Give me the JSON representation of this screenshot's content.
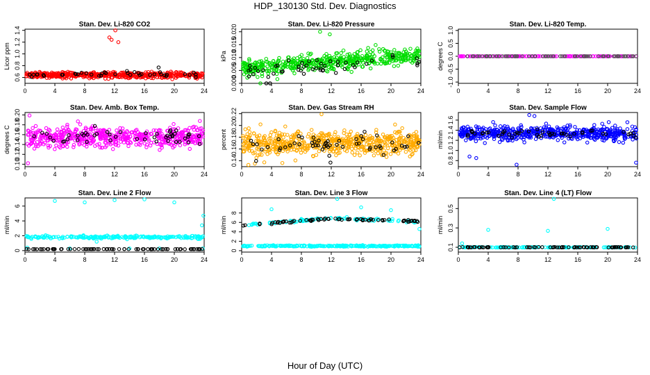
{
  "figure": {
    "title": "HDP_130130  Std. Dev. Diagnostics",
    "xlabel": "Hour of Day (UTC)"
  },
  "chart_data": [
    {
      "type": "scatter",
      "title": "Stan. Dev. Li-820 CO2",
      "ylabel": "Licor ppm",
      "xlim": [
        0,
        24
      ],
      "ylim": [
        0.5,
        1.42
      ],
      "xticks": [
        0,
        4,
        8,
        12,
        16,
        20,
        24
      ],
      "yticks": [
        0.6,
        0.8,
        1.0,
        1.2,
        1.4
      ],
      "ytick_labels": [
        "0.6",
        "0.8",
        "1.0",
        "1.2",
        "1.4"
      ],
      "color": "#ff0000",
      "series": [
        {
          "name": "main",
          "color": "#ff0000",
          "pattern": "band",
          "n": 520,
          "center": 0.64,
          "spread": 0.05,
          "outliers": [
            [
              11.3,
              1.28
            ],
            [
              11.6,
              1.24
            ],
            [
              12.1,
              1.4
            ],
            [
              12.5,
              1.2
            ]
          ]
        },
        {
          "name": "reference",
          "color": "#000000",
          "pattern": "band",
          "n": 40,
          "center": 0.65,
          "spread": 0.04,
          "outliers": [
            [
              17.9,
              0.77
            ]
          ]
        }
      ]
    },
    {
      "type": "scatter",
      "title": "Stan. Dev. Li-820 Pressure",
      "ylabel": "kPa",
      "xlim": [
        0,
        24
      ],
      "ylim": [
        0,
        0.021
      ],
      "xticks": [
        0,
        4,
        8,
        12,
        16,
        20,
        24
      ],
      "yticks": [
        0.0,
        0.005,
        0.01,
        0.015,
        0.02
      ],
      "ytick_labels": [
        "0.000",
        "0.005",
        "0.010",
        "0.015",
        "0.020"
      ],
      "color": "#00dd00",
      "series": [
        {
          "name": "main",
          "color": "#00dd00",
          "pattern": "trend",
          "n": 520,
          "start": 0.006,
          "end": 0.011,
          "spread": 0.0035,
          "outliers": [
            [
              10.5,
              0.02
            ],
            [
              11.8,
              0.019
            ],
            [
              2.5,
              0.0
            ]
          ]
        },
        {
          "name": "reference",
          "color": "#000000",
          "pattern": "trend",
          "n": 50,
          "start": 0.005,
          "end": 0.009,
          "spread": 0.003,
          "outliers": [
            [
              3.3,
              0.0
            ],
            [
              3.8,
              0.0
            ]
          ]
        }
      ]
    },
    {
      "type": "scatter",
      "title": "Stan. Dev. Li-820 Temp.",
      "ylabel": "degrees C",
      "xlim": [
        0,
        24
      ],
      "ylim": [
        -1.05,
        1.05
      ],
      "xticks": [
        0,
        4,
        8,
        12,
        16,
        20,
        24
      ],
      "yticks": [
        -1.0,
        -0.5,
        0.0,
        0.5,
        1.0
      ],
      "ytick_labels": [
        "-1.0",
        "-0.5",
        "0.0",
        "0.5",
        "1.0"
      ],
      "color": "#ff00ff",
      "series": [
        {
          "name": "main",
          "color": "#ff00ff",
          "pattern": "line",
          "n": 160,
          "center": 0.0,
          "spread": 0.0,
          "outliers": []
        },
        {
          "name": "reference",
          "color": "#555555",
          "pattern": "line",
          "n": 80,
          "center": 0.0,
          "spread": 0.0,
          "outliers": []
        }
      ]
    },
    {
      "type": "scatter",
      "title": "Stan. Dev. Amb. Box Temp.",
      "ylabel": "degrees C",
      "xlim": [
        0,
        24
      ],
      "ylim": [
        0.095,
        0.205
      ],
      "xticks": [
        0,
        4,
        8,
        12,
        16,
        20,
        24
      ],
      "yticks": [
        0.1,
        0.12,
        0.14,
        0.16,
        0.18,
        0.2
      ],
      "ytick_labels": [
        "0.10",
        "0.12",
        "0.14",
        "0.16",
        "0.18",
        "0.20"
      ],
      "color": "#ff00ff",
      "series": [
        {
          "name": "main",
          "color": "#ff00ff",
          "pattern": "band",
          "n": 560,
          "center": 0.155,
          "spread": 0.02,
          "outliers": [
            [
              0.4,
              0.102
            ],
            [
              0.6,
              0.199
            ]
          ]
        },
        {
          "name": "reference",
          "color": "#000000",
          "pattern": "band",
          "n": 50,
          "center": 0.158,
          "spread": 0.016,
          "outliers": []
        }
      ]
    },
    {
      "type": "scatter",
      "title": "Stan. Dev. Gas Stream RH",
      "ylabel": "percent",
      "xlim": [
        0,
        24
      ],
      "ylim": [
        0.13,
        0.222
      ],
      "xticks": [
        0,
        4,
        8,
        12,
        16,
        20,
        24
      ],
      "yticks": [
        0.14,
        0.16,
        0.18,
        0.2,
        0.22
      ],
      "ytick_labels": [
        "0.14",
        "0.16",
        "0.18",
        "0.20",
        "0.22"
      ],
      "color": "#ffaa00",
      "series": [
        {
          "name": "main",
          "color": "#ffaa00",
          "pattern": "band",
          "n": 620,
          "center": 0.17,
          "spread": 0.021,
          "outliers": [
            [
              10.7,
              0.219
            ],
            [
              0.9,
              0.133
            ]
          ]
        },
        {
          "name": "reference",
          "color": "#000000",
          "pattern": "band",
          "n": 55,
          "center": 0.168,
          "spread": 0.015,
          "outliers": [
            [
              11.9,
              0.137
            ]
          ]
        }
      ]
    },
    {
      "type": "scatter",
      "title": "Stan. Dev. Sample Flow",
      "ylabel": "ml/min",
      "xlim": [
        0,
        24
      ],
      "ylim": [
        0.68,
        1.75
      ],
      "xticks": [
        0,
        4,
        8,
        12,
        16,
        20,
        24
      ],
      "yticks": [
        0.8,
        1.0,
        1.2,
        1.4,
        1.6
      ],
      "ytick_labels": [
        "0.8",
        "1.0",
        "1.2",
        "1.4",
        "1.6"
      ],
      "color": "#0000ff",
      "series": [
        {
          "name": "main",
          "color": "#0000ff",
          "pattern": "band",
          "n": 560,
          "center": 1.34,
          "spread": 0.14,
          "outliers": [
            [
              9.5,
              1.7
            ],
            [
              10.2,
              1.68
            ],
            [
              7.8,
              0.72
            ],
            [
              23.8,
              0.76
            ],
            [
              1.5,
              0.88
            ],
            [
              2.4,
              0.85
            ]
          ]
        },
        {
          "name": "reference",
          "color": "#000000",
          "pattern": "band",
          "n": 50,
          "center": 1.34,
          "spread": 0.08,
          "outliers": []
        }
      ]
    },
    {
      "type": "scatter",
      "title": "Stan. Dev. Line 2 Flow",
      "ylabel": "ml/min",
      "xlim": [
        0,
        24
      ],
      "ylim": [
        -0.2,
        7.1
      ],
      "xticks": [
        0,
        4,
        8,
        12,
        16,
        20,
        24
      ],
      "yticks": [
        0,
        2,
        4,
        6
      ],
      "ytick_labels": [
        "0",
        "2",
        "4",
        "6"
      ],
      "color": "#00ffff",
      "series": [
        {
          "name": "main",
          "color": "#00ffff",
          "pattern": "band",
          "n": 220,
          "center": 1.8,
          "spread": 0.2,
          "outliers": [
            [
              4.0,
              6.7
            ],
            [
              8.0,
              6.5
            ],
            [
              12.0,
              6.8
            ],
            [
              16.0,
              6.9
            ],
            [
              20.0,
              6.5
            ],
            [
              23.7,
              3.4
            ],
            [
              23.9,
              4.7
            ],
            [
              9.6,
              1.2
            ],
            [
              0.3,
              0.4
            ],
            [
              6.0,
              0.3
            ],
            [
              14.0,
              0.3
            ],
            [
              18.0,
              0.3
            ],
            [
              23.8,
              0.3
            ]
          ]
        },
        {
          "name": "reference",
          "color": "#000000",
          "pattern": "line",
          "n": 80,
          "center": 0.2,
          "spread": 0.03,
          "outliers": []
        }
      ]
    },
    {
      "type": "scatter",
      "title": "Stan. Dev. Line 3 Flow",
      "ylabel": "ml/min",
      "xlim": [
        0,
        24
      ],
      "ylim": [
        -0.3,
        11.2
      ],
      "xticks": [
        0,
        4,
        8,
        12,
        16,
        20,
        24
      ],
      "yticks": [
        0,
        2,
        4,
        6,
        8
      ],
      "ytick_labels": [
        "0",
        "2",
        "4",
        "6",
        "8"
      ],
      "color": "#00ffff",
      "series": [
        {
          "name": "main",
          "color": "#00ffff",
          "pattern": "band",
          "n": 260,
          "center": 1.0,
          "spread": 0.15,
          "outliers": [
            [
              4.0,
              8.8
            ],
            [
              12.8,
              11.0
            ],
            [
              16.0,
              9.2
            ],
            [
              20.0,
              8.6
            ],
            [
              23.8,
              4.6
            ]
          ]
        },
        {
          "name": "main-upper",
          "color": "#00ffff",
          "pattern": "curve",
          "n": 90,
          "start": 5.4,
          "mid": 6.9,
          "end": 6.1,
          "spread": 0.25,
          "outliers": []
        },
        {
          "name": "reference",
          "color": "#000000",
          "pattern": "curve",
          "n": 70,
          "start": 5.4,
          "mid": 6.8,
          "end": 6.2,
          "spread": 0.2,
          "outliers": []
        }
      ]
    },
    {
      "type": "scatter",
      "title": "Stan. Dev. Line 4 (LT) Flow",
      "ylabel": "ml/min",
      "xlim": [
        0,
        24
      ],
      "ylim": [
        0.05,
        0.61
      ],
      "xticks": [
        0,
        4,
        8,
        12,
        16,
        20,
        24
      ],
      "yticks": [
        0.1,
        0.3,
        0.5
      ],
      "ytick_labels": [
        "0.1",
        "0.3",
        "0.5"
      ],
      "color": "#00ffff",
      "series": [
        {
          "name": "main",
          "color": "#00ffff",
          "pattern": "line",
          "n": 150,
          "center": 0.1,
          "spread": 0.006,
          "outliers": [
            [
              0.5,
              0.14
            ],
            [
              4.0,
              0.28
            ],
            [
              12.0,
              0.27
            ],
            [
              12.8,
              0.6
            ],
            [
              20.0,
              0.29
            ]
          ]
        },
        {
          "name": "reference",
          "color": "#000000",
          "pattern": "line",
          "n": 80,
          "center": 0.1,
          "spread": 0.005,
          "outliers": []
        }
      ]
    }
  ]
}
